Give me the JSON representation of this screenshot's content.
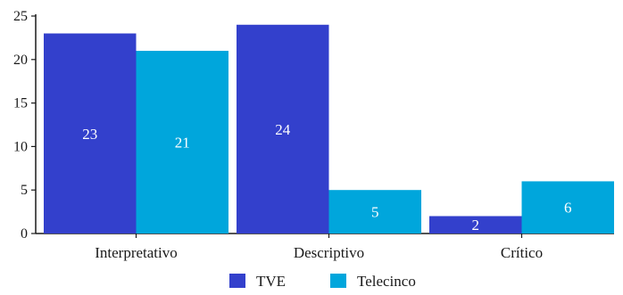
{
  "chart_data": {
    "type": "bar",
    "categories": [
      "Interpretativo",
      "Descriptivo",
      "Crítico"
    ],
    "series": [
      {
        "name": "TVE",
        "values": [
          23,
          24,
          2
        ],
        "color": "#3340cc"
      },
      {
        "name": "Telecinco",
        "values": [
          21,
          5,
          6
        ],
        "color": "#00a6dc"
      }
    ],
    "ylim": [
      0,
      25
    ],
    "yticks": [
      0,
      5,
      10,
      15,
      20,
      25
    ],
    "grid": false,
    "legend_position": "bottom-center",
    "data_labels": true
  }
}
